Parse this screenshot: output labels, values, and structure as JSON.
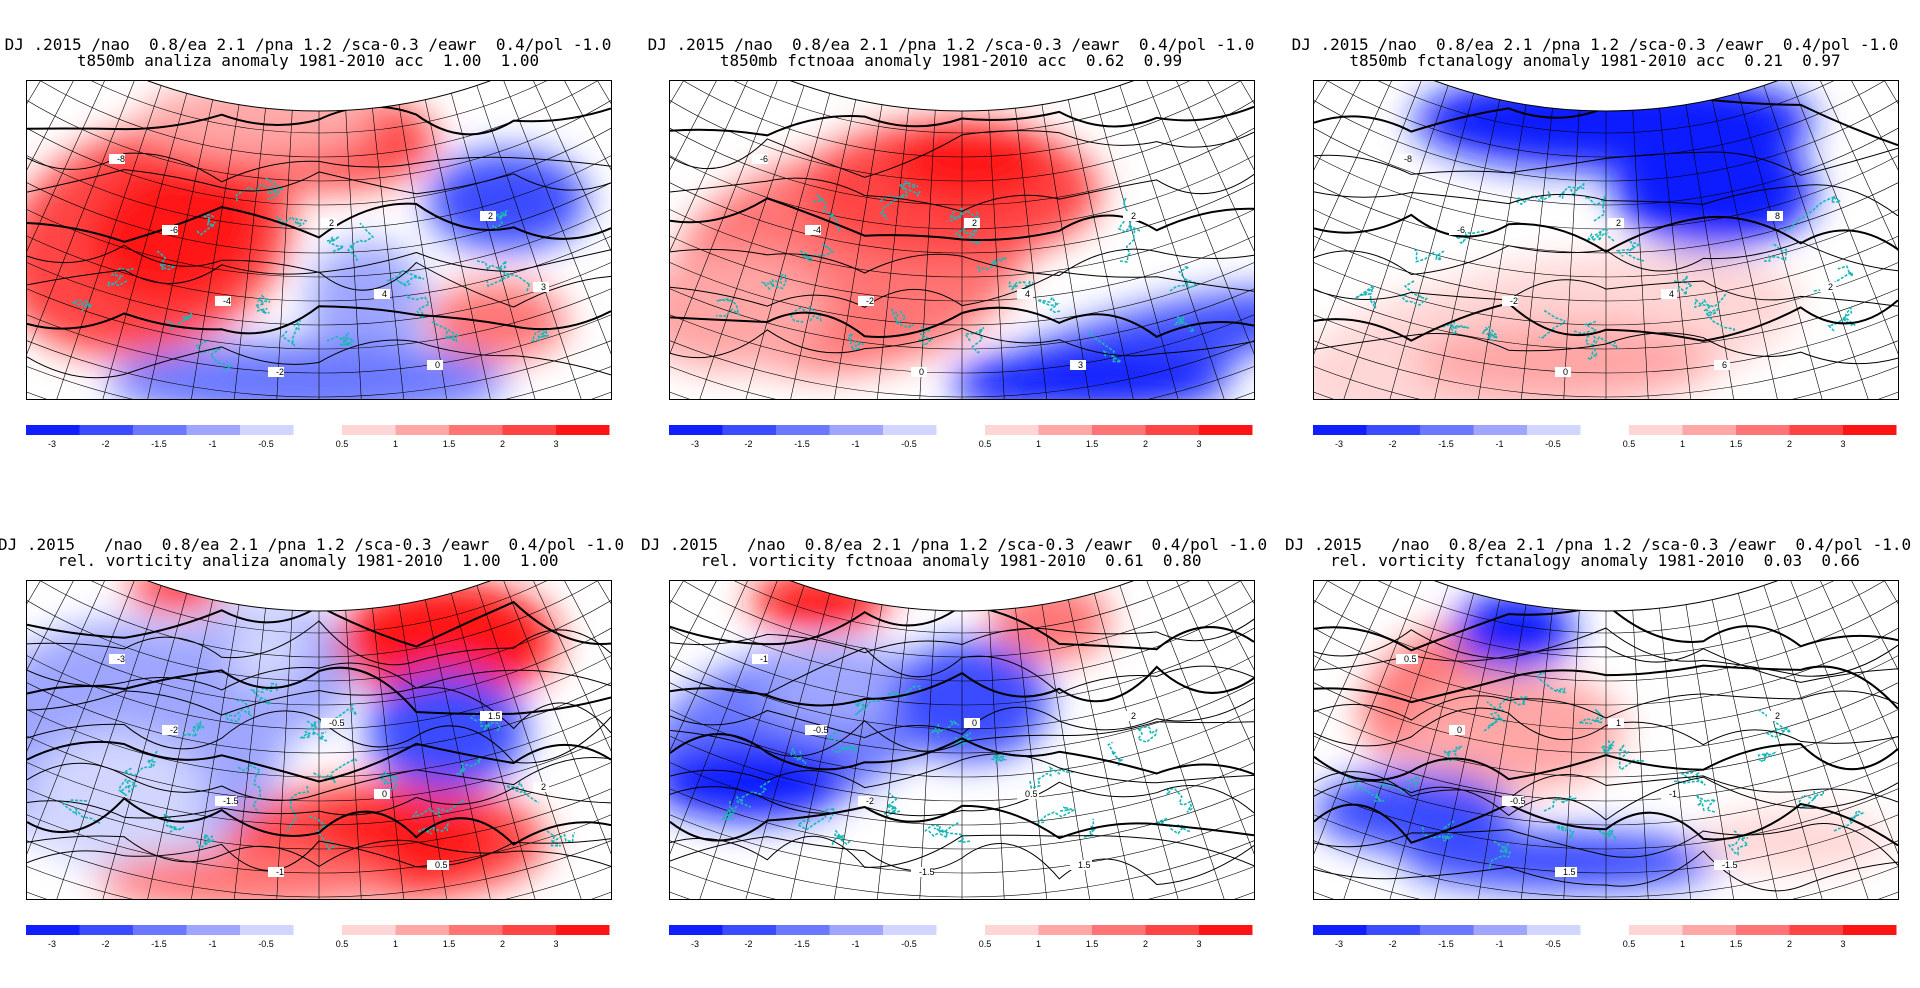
{
  "palette": {
    "neg": [
      "#0f1fff",
      "#3b4cff",
      "#6b78ff",
      "#9ea6ff",
      "#d2d6ff"
    ],
    "pos": [
      "#ffd6d6",
      "#ffa6a6",
      "#ff7474",
      "#ff4444",
      "#ff1414"
    ],
    "coast": "#18b8b8",
    "contour": "#000000"
  },
  "colorbar": {
    "neg_labels": [
      "-3",
      "-2",
      "-1.5",
      "-1",
      "-0.5"
    ],
    "pos_labels": [
      "0.5",
      "1",
      "1.5",
      "2",
      "3"
    ]
  },
  "panels": [
    {
      "title1": "DJ .2015 /nao  0.8/ea 2.1 /pna 1.2 /sca-0.3 /eawr  0.4/pol -1.0",
      "title2": "t850mb analiza anomaly 1981-2010 acc  1.00  1.00",
      "pattern": "t-analysis",
      "contour_labels": [
        "-8",
        "-6",
        "-4",
        "-2",
        "2",
        "4",
        "0",
        "2",
        "3"
      ]
    },
    {
      "title1": "DJ .2015 /nao  0.8/ea 2.1 /pna 1.2 /sca-0.3 /eawr  0.4/pol -1.0",
      "title2": "t850mb fctnoaa anomaly 1981-2010 acc  0.62  0.99",
      "pattern": "t-noaa",
      "contour_labels": [
        "-6",
        "-4",
        "-2",
        "0",
        "2",
        "4",
        "3",
        "2"
      ]
    },
    {
      "title1": "DJ .2015 /nao  0.8/ea 2.1 /pna 1.2 /sca-0.3 /eawr  0.4/pol -1.0",
      "title2": "t850mb fctanalogy anomaly 1981-2010 acc  0.21  0.97",
      "pattern": "t-analog",
      "contour_labels": [
        "-8",
        "-6",
        "-2",
        "0",
        "2",
        "4",
        "6",
        "8",
        "2"
      ]
    },
    {
      "title1": "DJ .2015   /nao  0.8/ea 2.1 /pna 1.2 /sca-0.3 /eawr  0.4/pol -1.0",
      "title2": "rel. vorticity analiza anomaly 1981-2010  1.00  1.00",
      "pattern": "v-analysis",
      "contour_labels": [
        "-3",
        "-2",
        "-1.5",
        "-1",
        "-0.5",
        "0",
        "0.5",
        "1.5",
        "2"
      ]
    },
    {
      "title1": "DJ .2015   /nao  0.8/ea 2.1 /pna 1.2 /sca-0.3 /eawr  0.4/pol -1.0",
      "title2": "rel. vorticity fctnoaa anomaly 1981-2010  0.61  0.80",
      "pattern": "v-noaa",
      "contour_labels": [
        "-1",
        "-0.5",
        "-2",
        "-1.5",
        "0",
        "0.5",
        "1.5",
        "2"
      ]
    },
    {
      "title1": "DJ .2015   /nao  0.8/ea 2.1 /pna 1.2 /sca-0.3 /eawr  0.4/pol -1.0",
      "title2": "rel. vorticity fctanalogy anomaly 1981-2010  0.03  0.66",
      "pattern": "v-analog",
      "contour_labels": [
        "0.5",
        "0",
        "-0.5",
        "1.5",
        "1",
        "-1",
        "-1.5",
        "2"
      ]
    }
  ]
}
